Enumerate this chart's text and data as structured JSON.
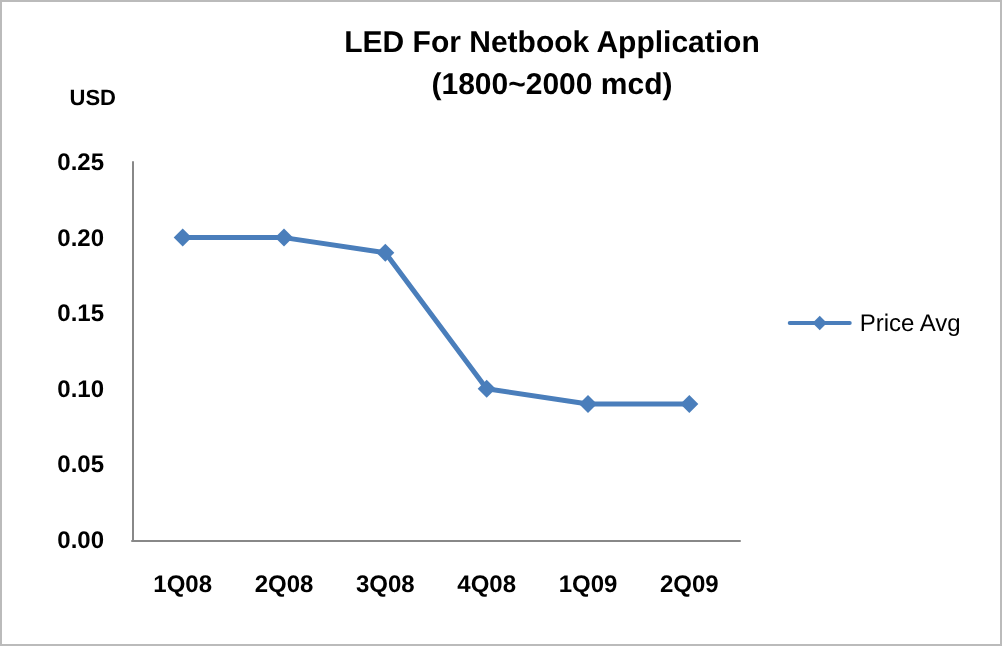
{
  "chart_data": {
    "type": "line",
    "title": "LED For Netbook Application",
    "subtitle": "(1800~2000 mcd)",
    "ylabel": "USD",
    "categories": [
      "1Q08",
      "2Q08",
      "3Q08",
      "4Q08",
      "1Q09",
      "2Q09"
    ],
    "series": [
      {
        "name": "Price Avg",
        "color": "#4a7ebb",
        "values": [
          0.2,
          0.2,
          0.19,
          0.1,
          0.09,
          0.09
        ]
      }
    ],
    "ylim": [
      0,
      0.25
    ],
    "yticks": [
      {
        "value": 0,
        "label": "0.00"
      },
      0.05,
      {
        "value": 0.1,
        "label": "0.10"
      },
      0.15,
      {
        "value": 0.2,
        "label": "0.20"
      },
      0.25
    ],
    "grid": false,
    "legend": "right",
    "marker": "diamond",
    "line_style": "solid"
  }
}
